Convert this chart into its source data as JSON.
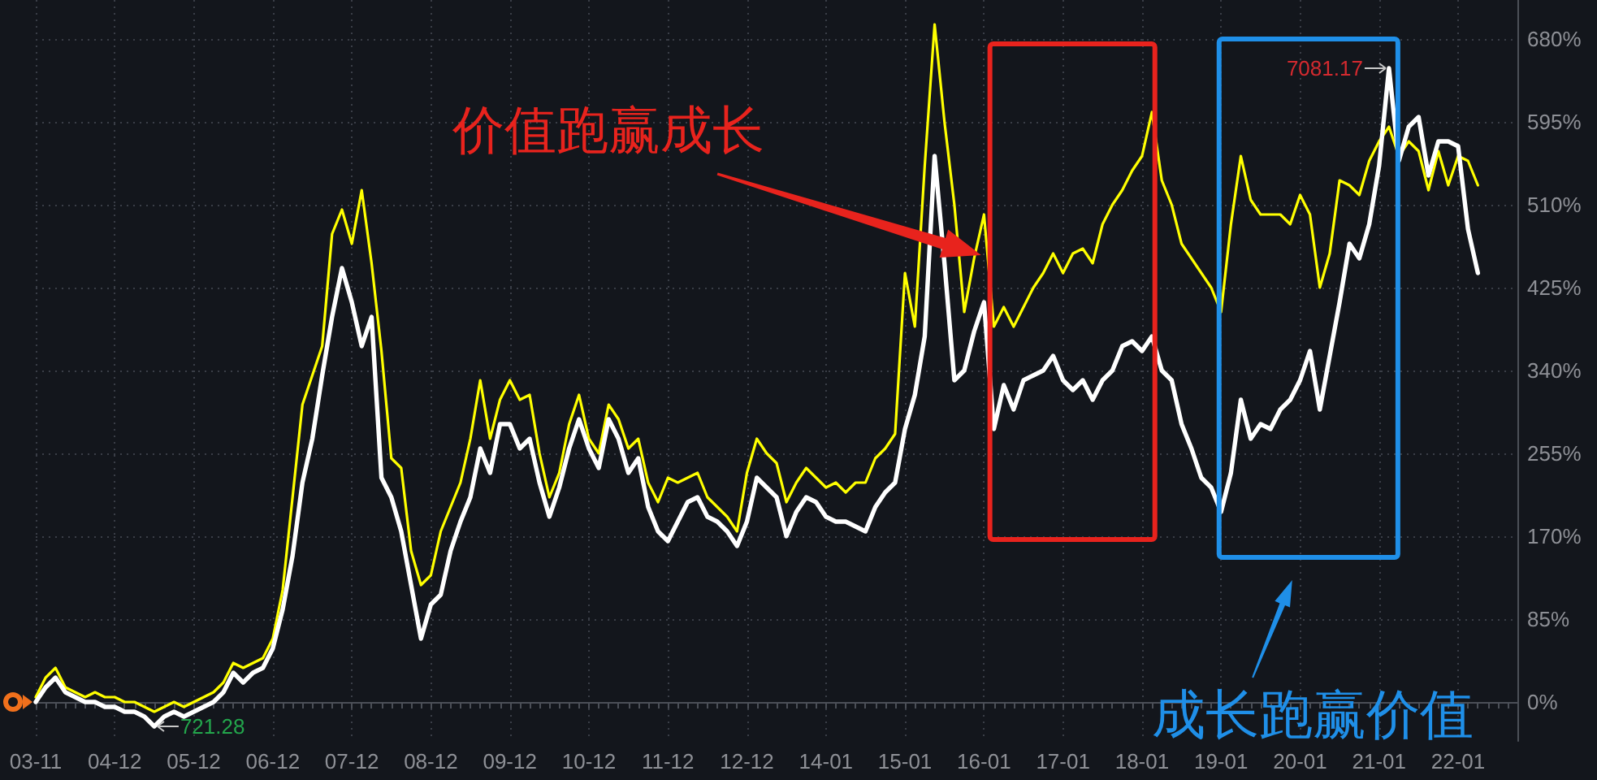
{
  "chart_data": {
    "type": "line",
    "categories": [
      "03-11",
      null,
      null,
      null,
      null,
      null,
      null,
      null,
      "04-12",
      null,
      null,
      null,
      null,
      null,
      null,
      null,
      "05-12",
      null,
      null,
      null,
      null,
      null,
      null,
      null,
      "06-12",
      null,
      null,
      null,
      null,
      null,
      null,
      null,
      "07-12",
      null,
      null,
      null,
      null,
      null,
      null,
      null,
      "08-12",
      null,
      null,
      null,
      null,
      null,
      null,
      null,
      "09-12",
      null,
      null,
      null,
      null,
      null,
      null,
      null,
      "10-12",
      null,
      null,
      null,
      null,
      null,
      null,
      null,
      "11-12",
      null,
      null,
      null,
      null,
      null,
      null,
      null,
      "12-12",
      null,
      null,
      null,
      null,
      null,
      null,
      null,
      "14-01",
      null,
      null,
      null,
      null,
      null,
      null,
      null,
      "15-01",
      null,
      null,
      null,
      null,
      null,
      null,
      null,
      "16-01",
      null,
      null,
      null,
      null,
      null,
      null,
      null,
      "17-01",
      null,
      null,
      null,
      null,
      null,
      null,
      null,
      "18-01",
      null,
      null,
      null,
      null,
      null,
      null,
      null,
      "19-01",
      null,
      null,
      null,
      null,
      null,
      null,
      null,
      "20-01",
      null,
      null,
      null,
      null,
      null,
      null,
      null,
      "21-01",
      null,
      null,
      null,
      null,
      null,
      null,
      null,
      "22-01",
      null,
      null,
      null,
      null,
      null,
      null
    ],
    "series": [
      {
        "color": "#ffff00",
        "values": [
          5,
          25,
          35,
          15,
          10,
          5,
          10,
          5,
          5,
          0,
          0,
          -5,
          -10,
          -5,
          0,
          -5,
          0,
          5,
          10,
          20,
          40,
          35,
          40,
          45,
          65,
          115,
          210,
          305,
          335,
          365,
          480,
          505,
          470,
          525,
          450,
          360,
          250,
          240,
          155,
          120,
          130,
          175,
          200,
          225,
          270,
          330,
          270,
          310,
          330,
          310,
          315,
          255,
          210,
          235,
          285,
          315,
          270,
          255,
          305,
          290,
          260,
          270,
          225,
          205,
          230,
          225,
          230,
          235,
          210,
          200,
          190,
          175,
          235,
          270,
          255,
          245,
          205,
          225,
          240,
          230,
          220,
          225,
          215,
          225,
          225,
          250,
          260,
          275,
          440,
          385,
          550,
          695,
          595,
          510,
          400,
          455,
          500,
          385,
          405,
          385,
          405,
          425,
          440,
          460,
          440,
          460,
          465,
          450,
          490,
          510,
          525,
          545,
          560,
          605,
          535,
          510,
          470,
          455,
          440,
          425,
          400,
          490,
          560,
          515,
          500,
          500,
          500,
          490,
          520,
          500,
          425,
          460,
          535,
          530,
          520,
          555,
          575,
          590,
          560,
          575,
          565,
          525,
          565,
          530,
          560,
          555,
          530,
          null,
          null,
          null,
          null
        ]
      },
      {
        "color": "#ffffff",
        "values": [
          0,
          15,
          25,
          10,
          5,
          0,
          0,
          -5,
          -5,
          -10,
          -10,
          -15,
          -25,
          -15,
          -10,
          -15,
          -10,
          -5,
          0,
          10,
          30,
          20,
          30,
          35,
          55,
          95,
          150,
          225,
          270,
          335,
          395,
          445,
          410,
          365,
          395,
          230,
          210,
          175,
          120,
          65,
          100,
          110,
          155,
          185,
          210,
          260,
          235,
          285,
          285,
          260,
          270,
          225,
          190,
          220,
          260,
          290,
          260,
          240,
          290,
          270,
          235,
          250,
          200,
          175,
          165,
          185,
          205,
          210,
          190,
          185,
          175,
          160,
          185,
          230,
          220,
          210,
          170,
          195,
          210,
          205,
          190,
          185,
          185,
          180,
          175,
          200,
          215,
          225,
          280,
          315,
          375,
          560,
          450,
          330,
          340,
          380,
          410,
          280,
          325,
          300,
          330,
          335,
          340,
          355,
          330,
          320,
          330,
          310,
          330,
          340,
          365,
          370,
          360,
          375,
          340,
          330,
          285,
          260,
          230,
          220,
          195,
          235,
          310,
          270,
          285,
          280,
          300,
          310,
          330,
          360,
          300,
          355,
          410,
          470,
          455,
          490,
          550,
          650,
          555,
          590,
          600,
          540,
          575,
          575,
          570,
          485,
          440,
          null,
          null,
          null,
          null
        ]
      }
    ],
    "ylim": [
      -40,
      720
    ],
    "yticks": [
      {
        "value": 0,
        "label": "0%"
      },
      {
        "value": 85,
        "label": "85%"
      },
      {
        "value": 170,
        "label": "170%"
      },
      {
        "value": 255,
        "label": "255%"
      },
      {
        "value": 340,
        "label": "340%"
      },
      {
        "value": 425,
        "label": "425%"
      },
      {
        "value": 510,
        "label": "510%"
      },
      {
        "value": 595,
        "label": "595%"
      },
      {
        "value": 680,
        "label": "680%"
      }
    ],
    "grid": true,
    "annotations": [
      "7081.17",
      "721.28",
      "价值跑赢成长",
      "成长跑赢价值"
    ]
  }
}
